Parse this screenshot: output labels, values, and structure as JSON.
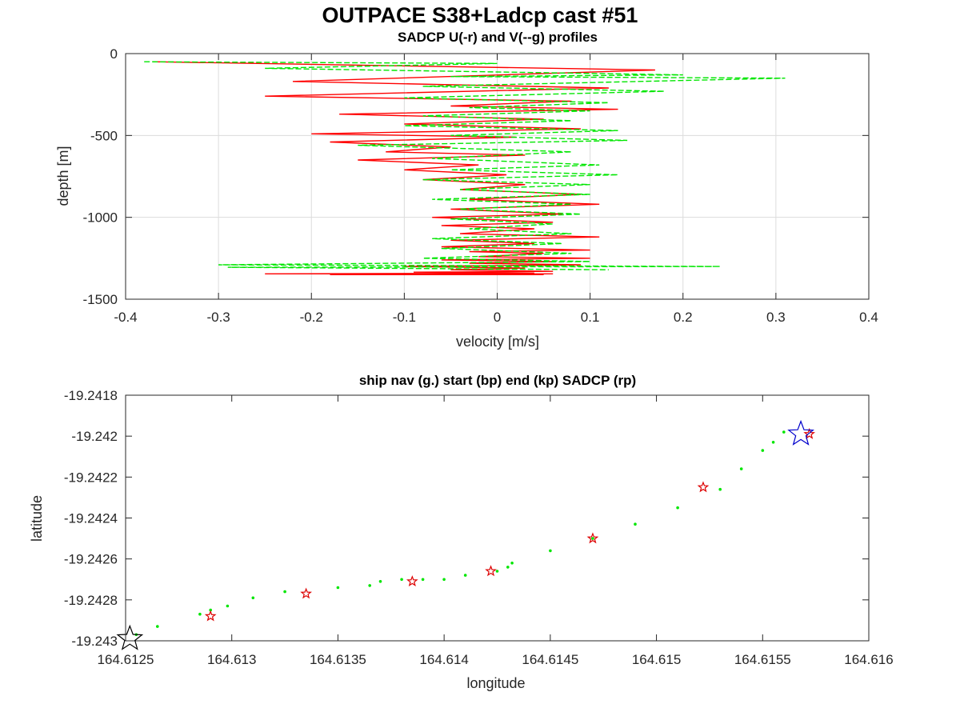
{
  "figure": {
    "suptitle": "OUTPACE S38+Ladcp cast #51"
  },
  "chart_data": [
    {
      "type": "line",
      "title": "SADCP U(-r) and V(--g) profiles",
      "xlabel": "velocity [m/s]",
      "ylabel": "depth [m]",
      "xlim": [
        -0.4,
        0.4
      ],
      "ylim": [
        -1500,
        0
      ],
      "xticks": [
        -0.4,
        -0.3,
        -0.2,
        -0.1,
        0,
        0.1,
        0.2,
        0.3,
        0.4
      ],
      "xtick_labels": [
        "-0.4",
        "-0.3",
        "-0.2",
        "-0.1",
        "0",
        "0.1",
        "0.2",
        "0.3",
        "0.4"
      ],
      "yticks": [
        0,
        -500,
        -1000,
        -1500
      ],
      "ytick_labels": [
        "0",
        "-500",
        "-1000",
        "-1500"
      ],
      "grid": true,
      "series": [
        {
          "line_style": "solid",
          "color": "#ff0000",
          "x": [
            -0.37,
            0.17,
            -0.22,
            0.12,
            -0.25,
            0.08,
            -0.05,
            0.13,
            -0.17,
            0.05,
            -0.1,
            0.09,
            -0.2,
            0.02,
            -0.18,
            -0.05,
            -0.12,
            0.03,
            -0.15,
            -0.02,
            -0.1,
            0.01,
            -0.08,
            0.03,
            -0.04,
            0.09,
            -0.03,
            0.11,
            -0.05,
            0.07,
            -0.07,
            0.06,
            -0.06,
            0.04,
            -0.04,
            0.11,
            -0.05,
            0.04,
            -0.06,
            0.1,
            -0.03,
            0.05,
            -0.02,
            0.1,
            -0.06,
            0.06,
            -0.03,
            0.09,
            -0.1,
            0.03,
            -0.05,
            0.06,
            -0.09,
            0.04,
            -0.25,
            0.06,
            -0.18,
            0.05
          ],
          "y": [
            -50,
            -100,
            -170,
            -210,
            -260,
            -290,
            -320,
            -340,
            -370,
            -400,
            -430,
            -460,
            -490,
            -510,
            -540,
            -570,
            -600,
            -620,
            -650,
            -680,
            -710,
            -740,
            -770,
            -800,
            -830,
            -860,
            -890,
            -920,
            -950,
            -980,
            -1000,
            -1030,
            -1050,
            -1070,
            -1100,
            -1120,
            -1140,
            -1160,
            -1180,
            -1200,
            -1210,
            -1220,
            -1240,
            -1250,
            -1260,
            -1270,
            -1280,
            -1290,
            -1300,
            -1310,
            -1320,
            -1330,
            -1335,
            -1340,
            -1345,
            -1345,
            -1350,
            -1350
          ]
        },
        {
          "line_style": "dashed",
          "color": "#00e600",
          "x": [
            -0.38,
            0.0,
            -0.25,
            0.2,
            -0.05,
            0.31,
            -0.08,
            0.18,
            -0.1,
            0.12,
            -0.03,
            0.1,
            -0.08,
            0.08,
            -0.1,
            0.13,
            -0.05,
            0.14,
            -0.15,
            0.08,
            -0.07,
            0.11,
            -0.05,
            0.13,
            -0.08,
            0.1,
            -0.04,
            0.1,
            -0.07,
            0.08,
            -0.04,
            0.09,
            -0.05,
            0.06,
            -0.03,
            0.08,
            -0.07,
            0.07,
            -0.06,
            0.08,
            -0.08,
            0.1,
            -0.3,
            0.24,
            -0.29,
            0.12
          ],
          "y": [
            -50,
            -60,
            -90,
            -130,
            -140,
            -150,
            -200,
            -230,
            -270,
            -300,
            -330,
            -350,
            -380,
            -410,
            -440,
            -470,
            -500,
            -530,
            -560,
            -600,
            -640,
            -680,
            -710,
            -740,
            -770,
            -800,
            -830,
            -860,
            -890,
            -920,
            -950,
            -980,
            -1010,
            -1040,
            -1070,
            -1100,
            -1130,
            -1160,
            -1190,
            -1220,
            -1250,
            -1270,
            -1290,
            -1300,
            -1305,
            -1320
          ]
        }
      ]
    },
    {
      "type": "scatter",
      "title": "ship nav (g.) start (bp) end (kp) SADCP (rp)",
      "xlabel": "longitude",
      "ylabel": "latitude",
      "xlim": [
        164.6125,
        164.616
      ],
      "ylim": [
        -19.243,
        -19.2418
      ],
      "xticks": [
        164.6125,
        164.613,
        164.6135,
        164.614,
        164.6145,
        164.615,
        164.6155,
        164.616
      ],
      "xtick_labels": [
        "164.6125",
        "164.613",
        "164.6135",
        "164.614",
        "164.6145",
        "164.615",
        "164.6155",
        "164.616"
      ],
      "yticks": [
        -19.2418,
        -19.242,
        -19.2422,
        -19.2424,
        -19.2426,
        -19.2428,
        -19.243
      ],
      "ytick_labels": [
        "-19.2418",
        "-19.242",
        "-19.2422",
        "-19.2424",
        "-19.2426",
        "-19.2428",
        "-19.243"
      ],
      "grid": false,
      "ship_nav": {
        "marker": "dot",
        "color": "#00e600",
        "x": [
          164.61255,
          164.61265,
          164.61285,
          164.6129,
          164.61298,
          164.6131,
          164.61325,
          164.6135,
          164.61365,
          164.6137,
          164.6138,
          164.6139,
          164.614,
          164.6141,
          164.61425,
          164.6143,
          164.61432,
          164.6145,
          164.6147,
          164.6149,
          164.6151,
          164.6153,
          164.6154,
          164.6155,
          164.61555,
          164.6156
        ],
        "y": [
          -19.24297,
          -19.24293,
          -19.24287,
          -19.24285,
          -19.24283,
          -19.24279,
          -19.24276,
          -19.24274,
          -19.24273,
          -19.24271,
          -19.2427,
          -19.2427,
          -19.2427,
          -19.24268,
          -19.24266,
          -19.24264,
          -19.24262,
          -19.24256,
          -19.2425,
          -19.24243,
          -19.24235,
          -19.24226,
          -19.24216,
          -19.24207,
          -19.24203,
          -19.24198
        ]
      },
      "start": {
        "marker": "star",
        "color": "#0000cc",
        "lon": 164.61568,
        "lat": -19.24199
      },
      "end": {
        "marker": "star",
        "color": "#000000",
        "lon": 164.61252,
        "lat": -19.24299
      },
      "sadcp": {
        "marker": "star",
        "color": "#dd0000",
        "lon": [
          164.6129,
          164.61335,
          164.61385,
          164.61422,
          164.6147,
          164.61522,
          164.61572
        ],
        "lat": [
          -19.24288,
          -19.24277,
          -19.24271,
          -19.24266,
          -19.2425,
          -19.24225,
          -19.24199
        ]
      }
    }
  ]
}
